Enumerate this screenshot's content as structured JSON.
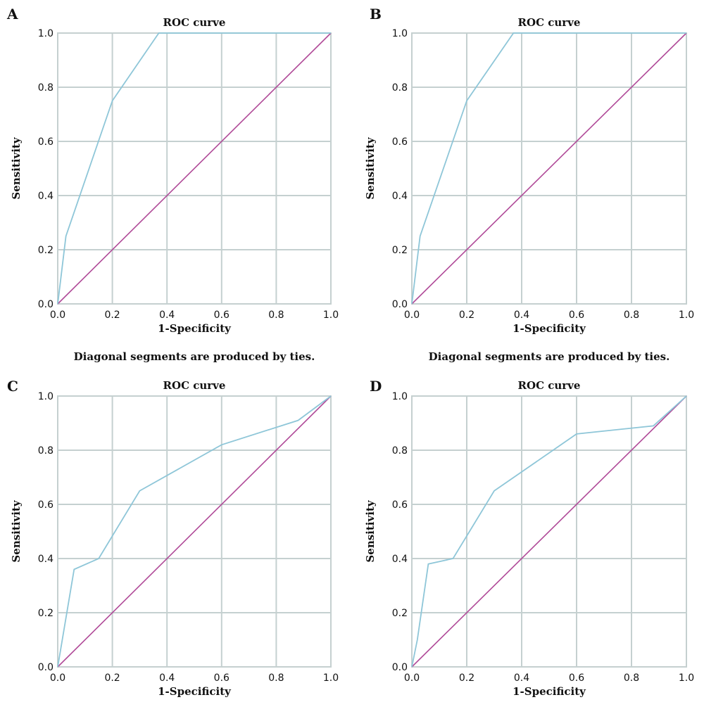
{
  "chart_data": [
    {
      "panel": "A",
      "type": "line",
      "title": "ROC curve",
      "xlabel": "1-Specificity",
      "ylabel": "Sensitivity",
      "xlim": [
        0,
        1
      ],
      "ylim": [
        0,
        1
      ],
      "xticks": [
        "0.0",
        "0.2",
        "0.4",
        "0.6",
        "0.8",
        "1.0"
      ],
      "yticks": [
        "0.0",
        "0.2",
        "0.4",
        "0.6",
        "0.8",
        "1.0"
      ],
      "grid": true,
      "footnote": "Diagonal segments are produced by ties.",
      "reference": {
        "x": [
          0,
          1
        ],
        "y": [
          0,
          1
        ],
        "color": "#b04a98"
      },
      "series": [
        {
          "x": [
            0,
            0.03,
            0.2,
            0.37,
            1.0
          ],
          "y": [
            0,
            0.25,
            0.75,
            1.0,
            1.0
          ],
          "color": "#8ec6d8"
        }
      ]
    },
    {
      "panel": "B",
      "type": "line",
      "title": "ROC curve",
      "xlabel": "1-Specificity",
      "ylabel": "Sensitivity",
      "xlim": [
        0,
        1
      ],
      "ylim": [
        0,
        1
      ],
      "xticks": [
        "0.0",
        "0.2",
        "0.4",
        "0.6",
        "0.8",
        "1.0"
      ],
      "yticks": [
        "0.0",
        "0.2",
        "0.4",
        "0.6",
        "0.8",
        "1.0"
      ],
      "grid": true,
      "footnote": "Diagonal segments are produced by ties.",
      "reference": {
        "x": [
          0,
          1
        ],
        "y": [
          0,
          1
        ],
        "color": "#b04a98"
      },
      "series": [
        {
          "x": [
            0,
            0.03,
            0.2,
            0.37,
            1.0
          ],
          "y": [
            0,
            0.25,
            0.75,
            1.0,
            1.0
          ],
          "color": "#8ec6d8"
        }
      ]
    },
    {
      "panel": "C",
      "type": "line",
      "title": "ROC curve",
      "xlabel": "1-Specificity",
      "ylabel": "Sensitivity",
      "xlim": [
        0,
        1
      ],
      "ylim": [
        0,
        1
      ],
      "xticks": [
        "0.0",
        "0.2",
        "0.4",
        "0.6",
        "0.8",
        "1.0"
      ],
      "yticks": [
        "0.0",
        "0.2",
        "0.4",
        "0.6",
        "0.8",
        "1.0"
      ],
      "grid": true,
      "footnote": "",
      "reference": {
        "x": [
          0,
          1
        ],
        "y": [
          0,
          1
        ],
        "color": "#b04a98"
      },
      "series": [
        {
          "x": [
            0,
            0.06,
            0.15,
            0.3,
            0.6,
            0.88,
            1.0
          ],
          "y": [
            0,
            0.36,
            0.4,
            0.65,
            0.82,
            0.91,
            1.0
          ],
          "color": "#8ec6d8"
        }
      ]
    },
    {
      "panel": "D",
      "type": "line",
      "title": "ROC curve",
      "xlabel": "1-Specificity",
      "ylabel": "Sensitivity",
      "xlim": [
        0,
        1
      ],
      "ylim": [
        0,
        1
      ],
      "xticks": [
        "0.0",
        "0.2",
        "0.4",
        "0.6",
        "0.8",
        "1.0"
      ],
      "yticks": [
        "0.0",
        "0.2",
        "0.4",
        "0.6",
        "0.8",
        "1.0"
      ],
      "grid": true,
      "footnote": "",
      "reference": {
        "x": [
          0,
          1
        ],
        "y": [
          0,
          1
        ],
        "color": "#b04a98"
      },
      "series": [
        {
          "x": [
            0,
            0.02,
            0.06,
            0.15,
            0.3,
            0.6,
            0.88,
            1.0
          ],
          "y": [
            0,
            0.1,
            0.38,
            0.4,
            0.65,
            0.86,
            0.89,
            1.0
          ],
          "color": "#8ec6d8"
        }
      ]
    }
  ]
}
